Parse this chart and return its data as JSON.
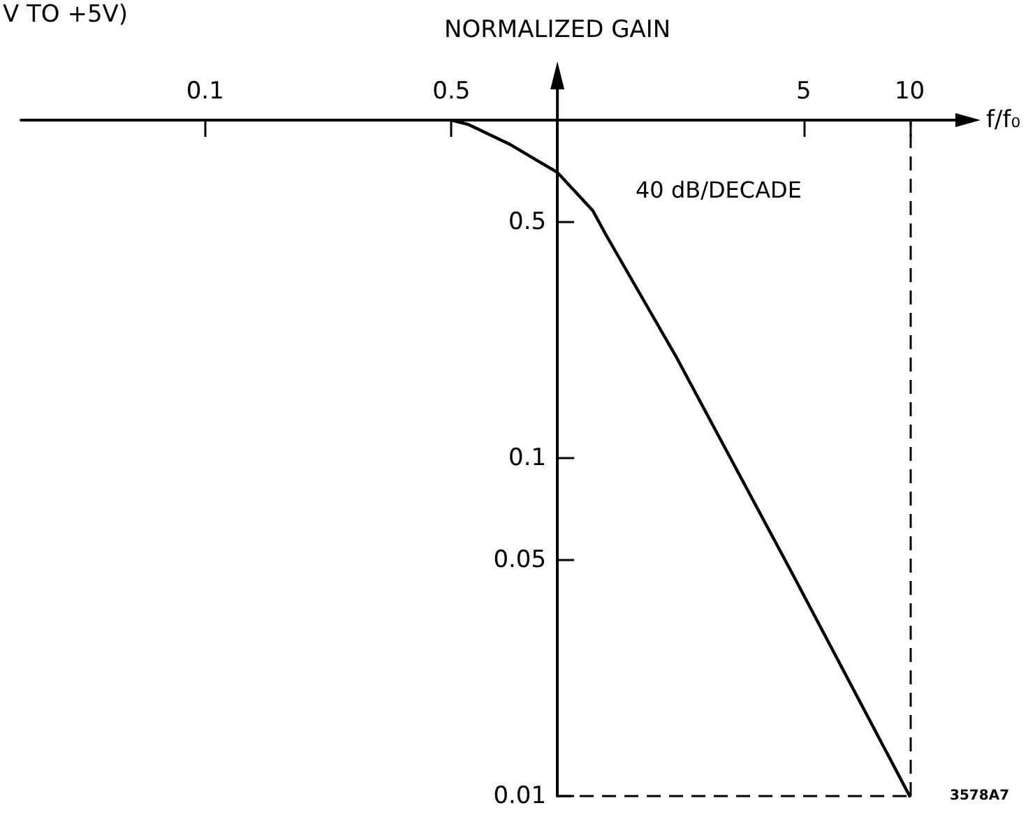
{
  "chart_data": {
    "type": "line",
    "ylabel": "NORMALIZED GAIN",
    "xlabel": "f/f₀",
    "annotations": [
      "V TO +5V)",
      "40 dB/DECADE",
      "3578A7"
    ],
    "series": [
      {
        "color": "#000000",
        "x": [
          0.5,
          0.56,
          0.73,
          1,
          1.26,
          1.37,
          2.17,
          4.62,
          10
        ],
        "values": [
          1,
          0.97,
          0.85,
          0.7,
          0.54,
          0.46,
          0.2,
          0.046,
          0.01
        ]
      }
    ],
    "log": "xy",
    "xlim": [
      0.03,
      13
    ],
    "ylim": [
      0.01,
      1
    ],
    "xticks": [
      0.1,
      0.5,
      {
        "value": 1,
        "label": null
      },
      5,
      10
    ],
    "yticks": [
      0.01,
      0.05,
      0.1,
      0.5
    ],
    "ref_lines": [
      {
        "axis": "x",
        "value": 10,
        "line_style": "dashed"
      },
      {
        "axis": "y",
        "value": 0.01,
        "line_style": "dashed"
      }
    ],
    "grid": false,
    "marker": "none",
    "line_style": "solid"
  }
}
